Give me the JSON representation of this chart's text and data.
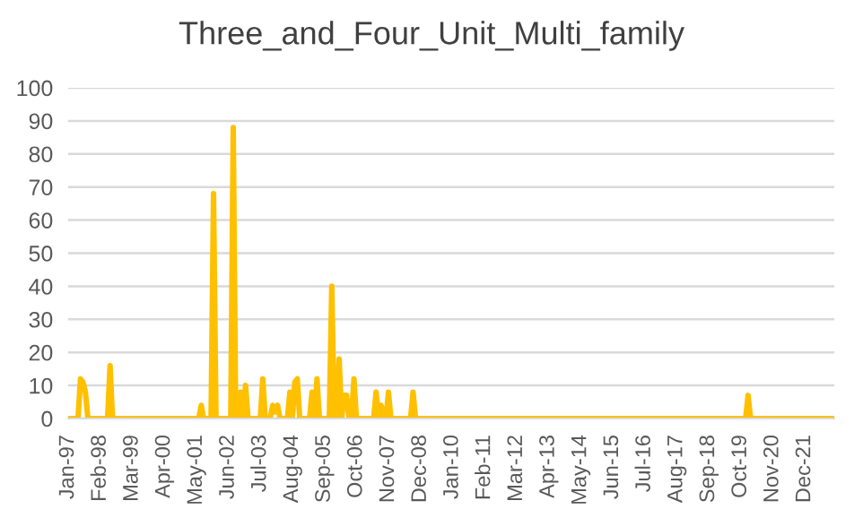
{
  "chart_data": {
    "type": "line",
    "title": "Three_and_Four_Unit_Multi_family",
    "categories": [
      "Jan-97",
      null,
      null,
      null,
      null,
      null,
      null,
      null,
      null,
      null,
      null,
      null,
      null,
      "Feb-98",
      null,
      null,
      null,
      null,
      null,
      null,
      null,
      null,
      null,
      null,
      null,
      null,
      "Mar-99",
      null,
      null,
      null,
      null,
      null,
      null,
      null,
      null,
      null,
      null,
      null,
      null,
      "Apr-00",
      null,
      null,
      null,
      null,
      null,
      null,
      null,
      null,
      null,
      null,
      null,
      null,
      "May-01",
      null,
      null,
      null,
      null,
      null,
      null,
      null,
      null,
      null,
      null,
      null,
      null,
      "Jun-02",
      null,
      null,
      null,
      null,
      null,
      null,
      null,
      null,
      null,
      null,
      null,
      null,
      "Jul-03",
      null,
      null,
      null,
      null,
      null,
      null,
      null,
      null,
      null,
      null,
      null,
      null,
      "Aug-04",
      null,
      null,
      null,
      null,
      null,
      null,
      null,
      null,
      null,
      null,
      null,
      null,
      "Sep-05",
      null,
      null,
      null,
      null,
      null,
      null,
      null,
      null,
      null,
      null,
      null,
      null,
      "Oct-06",
      null,
      null,
      null,
      null,
      null,
      null,
      null,
      null,
      null,
      null,
      null,
      null,
      "Nov-07",
      null,
      null,
      null,
      null,
      null,
      null,
      null,
      null,
      null,
      null,
      null,
      null,
      "Dec-08",
      null,
      null,
      null,
      null,
      null,
      null,
      null,
      null,
      null,
      null,
      null,
      null,
      "Jan-10",
      null,
      null,
      null,
      null,
      null,
      null,
      null,
      null,
      null,
      null,
      null,
      null,
      "Feb-11",
      null,
      null,
      null,
      null,
      null,
      null,
      null,
      null,
      null,
      null,
      null,
      null,
      "Mar-12",
      null,
      null,
      null,
      null,
      null,
      null,
      null,
      null,
      null,
      null,
      null,
      null,
      "Apr-13",
      null,
      null,
      null,
      null,
      null,
      null,
      null,
      null,
      null,
      null,
      null,
      null,
      "May-14",
      null,
      null,
      null,
      null,
      null,
      null,
      null,
      null,
      null,
      null,
      null,
      null,
      "Jun-15",
      null,
      null,
      null,
      null,
      null,
      null,
      null,
      null,
      null,
      null,
      null,
      null,
      "Jul-16",
      null,
      null,
      null,
      null,
      null,
      null,
      null,
      null,
      null,
      null,
      null,
      null,
      "Aug-17",
      null,
      null,
      null,
      null,
      null,
      null,
      null,
      null,
      null,
      null,
      null,
      null,
      "Sep-18",
      null,
      null,
      null,
      null,
      null,
      null,
      null,
      null,
      null,
      null,
      null,
      null,
      "Oct-19",
      null,
      null,
      null,
      null,
      null,
      null,
      null,
      null,
      null,
      null,
      null,
      null,
      "Nov-20",
      null,
      null,
      null,
      null,
      null,
      null,
      null,
      null,
      null,
      null,
      null,
      null,
      "Dec-21",
      null,
      null,
      null,
      null,
      null,
      null,
      null,
      null,
      null,
      null,
      null,
      null
    ],
    "series": [
      {
        "color": "#ffc000",
        "values": [
          0,
          0,
          0,
          0,
          0,
          12,
          11,
          8,
          0,
          0,
          0,
          0,
          0,
          0,
          0,
          0,
          0,
          16,
          0,
          0,
          0,
          0,
          0,
          0,
          0,
          0,
          0,
          0,
          0,
          0,
          0,
          0,
          0,
          0,
          0,
          0,
          0,
          0,
          0,
          0,
          0,
          0,
          0,
          0,
          0,
          0,
          0,
          0,
          0,
          0,
          0,
          0,
          0,
          0,
          4,
          0,
          0,
          0,
          0,
          68,
          0,
          0,
          0,
          0,
          0,
          0,
          0,
          88,
          0,
          0,
          8,
          0,
          10,
          0,
          0,
          0,
          0,
          0,
          0,
          12,
          0,
          0,
          0,
          4,
          2,
          4,
          0,
          0,
          0,
          0,
          8,
          0,
          11,
          12,
          0,
          0,
          0,
          0,
          0,
          8,
          0,
          12,
          0,
          0,
          0,
          0,
          0,
          40,
          0,
          0,
          18,
          0,
          7,
          7,
          0,
          0,
          12,
          0,
          0,
          0,
          0,
          0,
          0,
          0,
          0,
          8,
          0,
          4,
          0,
          0,
          8,
          0,
          0,
          0,
          0,
          0,
          0,
          0,
          0,
          0,
          8,
          0,
          0,
          0,
          0,
          0,
          0,
          0,
          0,
          0,
          0,
          0,
          0,
          0,
          0,
          0,
          0,
          0,
          0,
          0,
          0,
          0,
          0,
          0,
          0,
          0,
          0,
          0,
          0,
          0,
          0,
          0,
          0,
          0,
          0,
          0,
          0,
          0,
          0,
          0,
          0,
          0,
          0,
          0,
          0,
          0,
          0,
          0,
          0,
          0,
          0,
          0,
          0,
          0,
          0,
          0,
          0,
          0,
          0,
          0,
          0,
          0,
          0,
          0,
          0,
          0,
          0,
          0,
          0,
          0,
          0,
          0,
          0,
          0,
          0,
          0,
          0,
          0,
          0,
          0,
          0,
          0,
          0,
          0,
          0,
          0,
          0,
          0,
          0,
          0,
          0,
          0,
          0,
          0,
          0,
          0,
          0,
          0,
          0,
          0,
          0,
          0,
          0,
          0,
          0,
          0,
          0,
          0,
          0,
          0,
          0,
          0,
          0,
          0,
          0,
          0,
          0,
          0,
          0,
          0,
          0,
          0,
          0,
          0,
          0,
          0,
          0,
          0,
          0,
          0,
          0,
          0,
          0,
          0,
          0,
          0,
          7,
          0,
          0,
          0,
          0,
          0,
          0,
          0,
          0,
          0,
          0,
          0,
          0,
          0,
          0,
          0,
          0,
          0,
          0,
          0,
          0,
          0,
          0,
          0,
          0,
          0,
          0,
          0,
          0,
          0,
          0,
          0,
          0,
          0,
          0,
          0
        ]
      }
    ],
    "ylim": [
      0,
      100
    ],
    "yticks": [
      0,
      10,
      20,
      30,
      40,
      50,
      60,
      70,
      80,
      90,
      100
    ],
    "grid": "y",
    "legend": false
  }
}
